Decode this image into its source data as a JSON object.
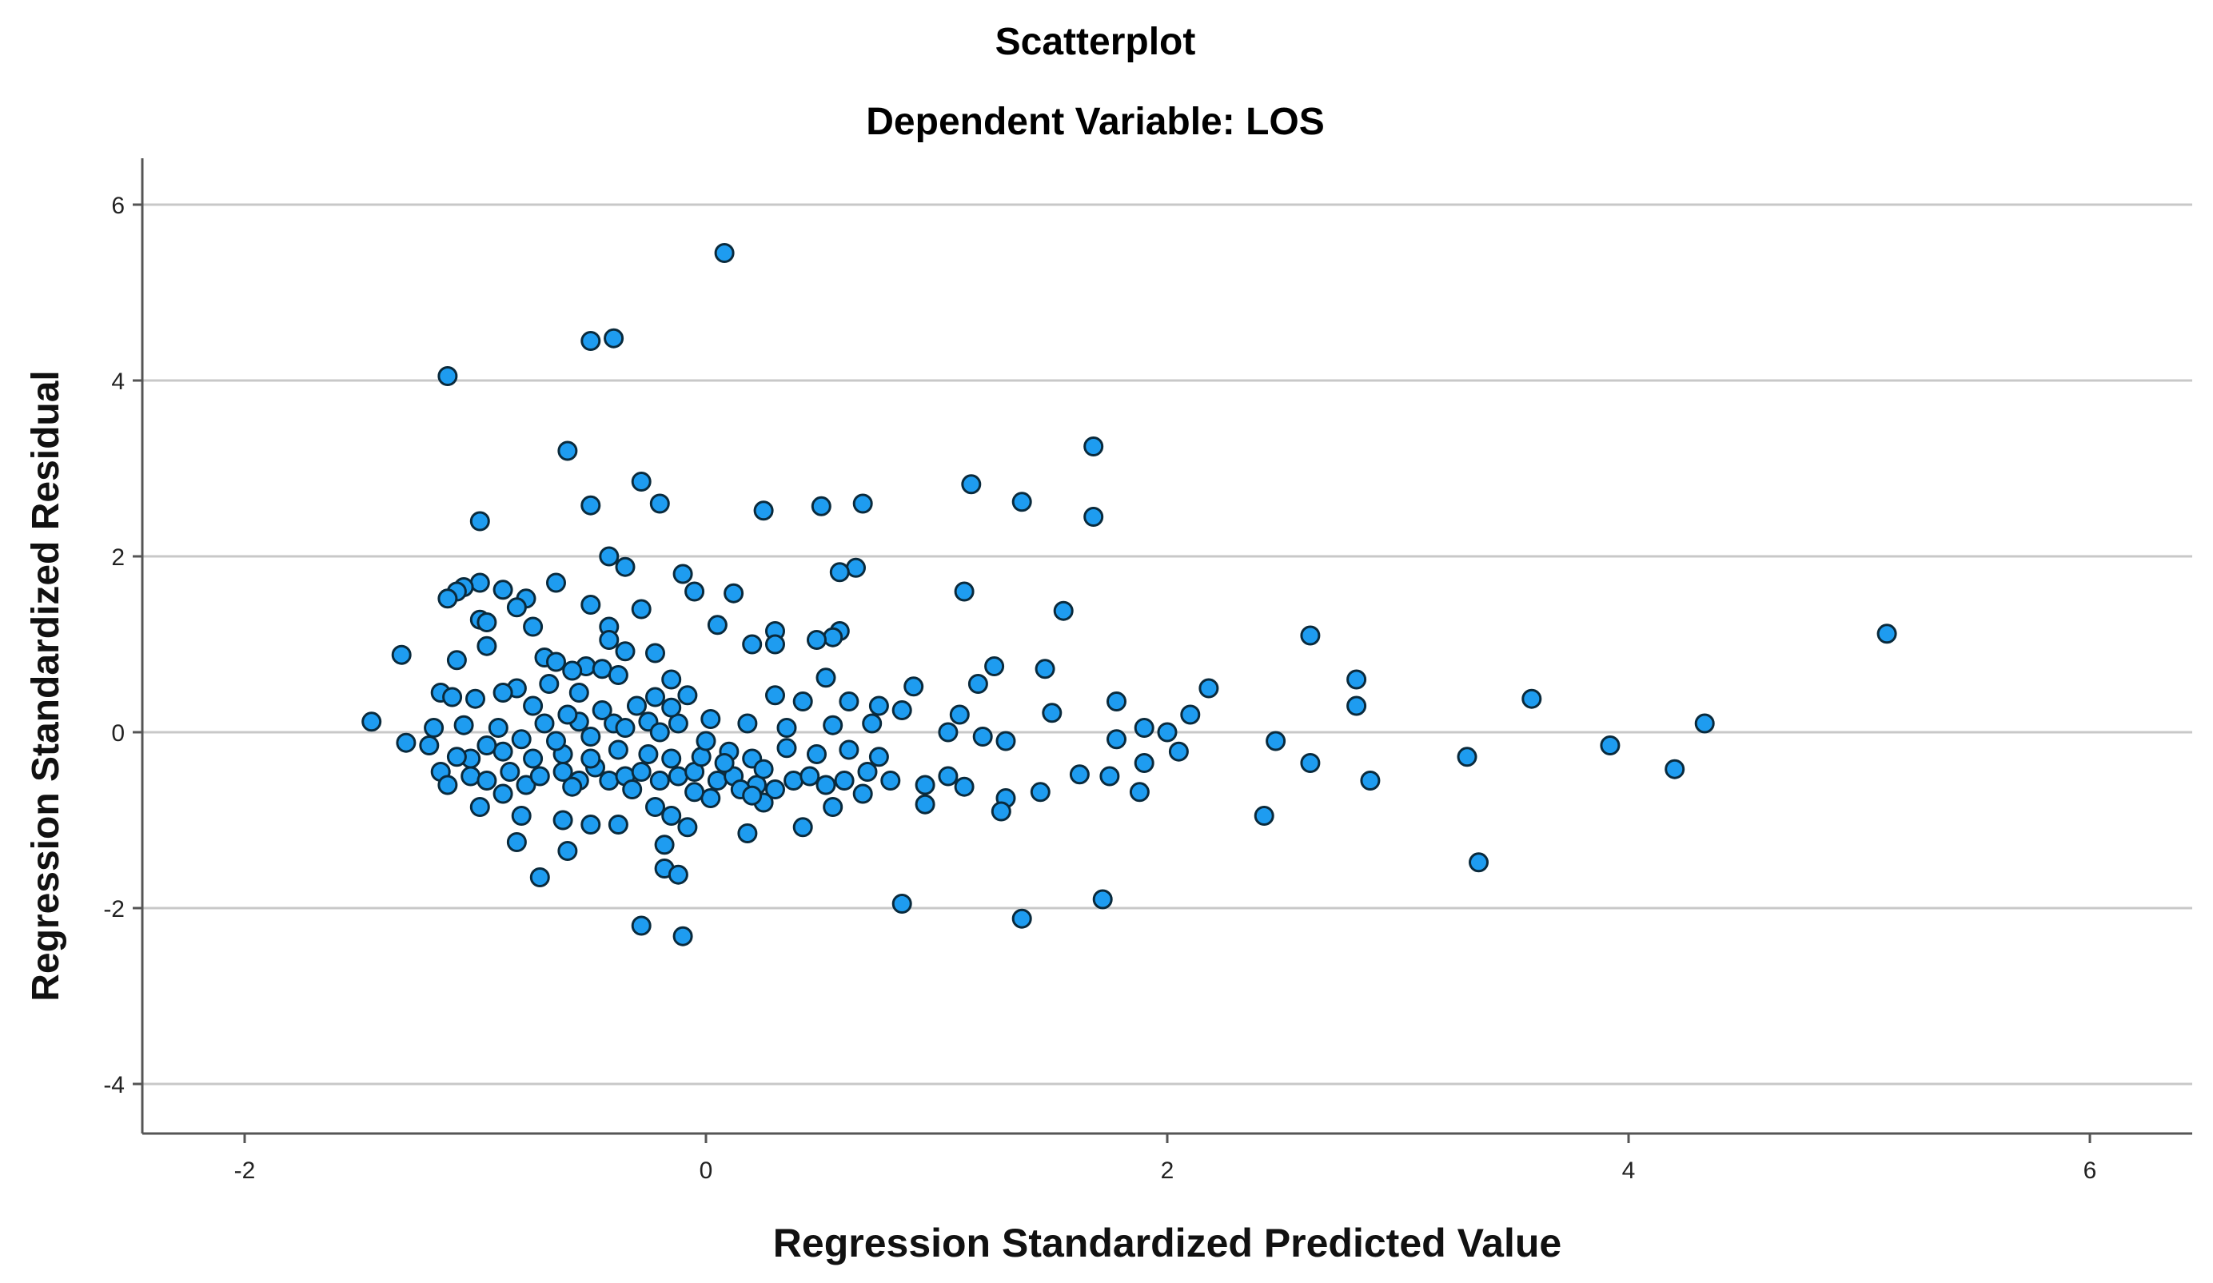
{
  "chart_data": {
    "type": "scatter",
    "title": "Scatterplot",
    "subtitle": "Dependent Variable: LOS",
    "xlabel": "Regression Standardized Predicted Value",
    "ylabel": "Regression Standardized Residual",
    "xlim": [
      -2.4,
      6.4
    ],
    "ylim": [
      -4.5,
      6.5
    ],
    "xticks": [
      -2,
      0,
      2,
      4,
      6
    ],
    "yticks": [
      -4,
      -2,
      0,
      2,
      4,
      6
    ],
    "xtick_labels": [
      "-2",
      "0",
      "2",
      "4",
      "6"
    ],
    "ytick_labels": [
      "-4",
      "-2",
      "0",
      "2",
      "4",
      "6"
    ],
    "grid": "horizontal",
    "marker_fill": "#1e9cf0",
    "marker_edge": "#0a2a3c",
    "grid_color": "#c8c8c8",
    "axis_color": "#555555",
    "points": [
      [
        0.08,
        5.45
      ],
      [
        -0.5,
        4.45
      ],
      [
        -0.4,
        4.48
      ],
      [
        -1.12,
        4.05
      ],
      [
        -0.6,
        3.2
      ],
      [
        1.68,
        3.25
      ],
      [
        -0.28,
        2.85
      ],
      [
        1.15,
        2.82
      ],
      [
        1.37,
        2.62
      ],
      [
        0.68,
        2.6
      ],
      [
        -0.2,
        2.6
      ],
      [
        -0.5,
        2.58
      ],
      [
        0.5,
        2.57
      ],
      [
        0.25,
        2.52
      ],
      [
        1.68,
        2.45
      ],
      [
        -0.98,
        2.4
      ],
      [
        -0.42,
        2.0
      ],
      [
        -0.35,
        1.88
      ],
      [
        0.65,
        1.87
      ],
      [
        0.58,
        1.82
      ],
      [
        -0.1,
        1.8
      ],
      [
        -0.98,
        1.7
      ],
      [
        -0.65,
        1.7
      ],
      [
        -1.05,
        1.65
      ],
      [
        -1.08,
        1.6
      ],
      [
        -0.88,
        1.62
      ],
      [
        -0.78,
        1.52
      ],
      [
        -1.12,
        1.52
      ],
      [
        -0.05,
        1.6
      ],
      [
        0.12,
        1.58
      ],
      [
        1.12,
        1.6
      ],
      [
        1.55,
        1.38
      ],
      [
        -0.5,
        1.45
      ],
      [
        -0.82,
        1.42
      ],
      [
        -0.28,
        1.4
      ],
      [
        -0.98,
        1.28
      ],
      [
        -0.95,
        1.25
      ],
      [
        -0.75,
        1.2
      ],
      [
        -0.42,
        1.2
      ],
      [
        0.05,
        1.22
      ],
      [
        0.3,
        1.15
      ],
      [
        0.58,
        1.15
      ],
      [
        0.55,
        1.08
      ],
      [
        0.48,
        1.05
      ],
      [
        0.3,
        1.0
      ],
      [
        0.2,
        1.0
      ],
      [
        2.62,
        1.1
      ],
      [
        5.12,
        1.12
      ],
      [
        -0.42,
        1.05
      ],
      [
        -0.95,
        0.98
      ],
      [
        -0.35,
        0.92
      ],
      [
        -0.22,
        0.9
      ],
      [
        -1.32,
        0.88
      ],
      [
        -1.08,
        0.82
      ],
      [
        -0.7,
        0.85
      ],
      [
        -0.65,
        0.8
      ],
      [
        -0.52,
        0.75
      ],
      [
        -0.45,
        0.72
      ],
      [
        -0.58,
        0.7
      ],
      [
        -0.38,
        0.65
      ],
      [
        -0.15,
        0.6
      ],
      [
        0.52,
        0.62
      ],
      [
        1.25,
        0.75
      ],
      [
        1.47,
        0.72
      ],
      [
        1.18,
        0.55
      ],
      [
        0.9,
        0.52
      ],
      [
        2.18,
        0.5
      ],
      [
        2.82,
        0.6
      ],
      [
        -0.68,
        0.55
      ],
      [
        -0.82,
        0.5
      ],
      [
        -0.88,
        0.45
      ],
      [
        -1.15,
        0.45
      ],
      [
        -1.1,
        0.4
      ],
      [
        -1.0,
        0.38
      ],
      [
        -0.55,
        0.45
      ],
      [
        -0.22,
        0.4
      ],
      [
        -0.08,
        0.42
      ],
      [
        0.3,
        0.42
      ],
      [
        0.42,
        0.35
      ],
      [
        0.62,
        0.35
      ],
      [
        0.75,
        0.3
      ],
      [
        0.85,
        0.25
      ],
      [
        1.1,
        0.2
      ],
      [
        1.5,
        0.22
      ],
      [
        1.78,
        0.35
      ],
      [
        2.1,
        0.2
      ],
      [
        2.82,
        0.3
      ],
      [
        3.58,
        0.38
      ],
      [
        -1.45,
        0.12
      ],
      [
        -1.3,
        -0.12
      ],
      [
        -1.2,
        -0.15
      ],
      [
        -1.18,
        0.05
      ],
      [
        -1.05,
        0.08
      ],
      [
        -0.9,
        0.05
      ],
      [
        -0.7,
        0.1
      ],
      [
        -0.55,
        0.12
      ],
      [
        -0.4,
        0.1
      ],
      [
        -0.25,
        0.12
      ],
      [
        -0.12,
        0.1
      ],
      [
        0.02,
        0.15
      ],
      [
        0.18,
        0.1
      ],
      [
        0.35,
        0.05
      ],
      [
        0.55,
        0.08
      ],
      [
        0.72,
        0.1
      ],
      [
        1.05,
        0.0
      ],
      [
        1.2,
        -0.05
      ],
      [
        1.3,
        -0.1
      ],
      [
        1.78,
        -0.08
      ],
      [
        1.9,
        0.05
      ],
      [
        2.0,
        0.0
      ],
      [
        2.47,
        -0.1
      ],
      [
        4.33,
        0.1
      ],
      [
        3.92,
        -0.15
      ],
      [
        3.3,
        -0.28
      ],
      [
        2.62,
        -0.35
      ],
      [
        2.88,
        -0.55
      ],
      [
        4.2,
        -0.42
      ],
      [
        2.42,
        -0.95
      ],
      [
        -1.15,
        -0.45
      ],
      [
        -1.12,
        -0.6
      ],
      [
        -1.02,
        -0.5
      ],
      [
        -0.95,
        -0.55
      ],
      [
        -0.85,
        -0.45
      ],
      [
        -0.78,
        -0.6
      ],
      [
        -0.72,
        -0.5
      ],
      [
        -0.62,
        -0.45
      ],
      [
        -0.55,
        -0.55
      ],
      [
        -0.48,
        -0.4
      ],
      [
        -0.42,
        -0.55
      ],
      [
        -0.35,
        -0.5
      ],
      [
        -0.28,
        -0.45
      ],
      [
        -0.2,
        -0.55
      ],
      [
        -0.12,
        -0.5
      ],
      [
        -0.05,
        -0.45
      ],
      [
        0.05,
        -0.55
      ],
      [
        0.12,
        -0.5
      ],
      [
        0.22,
        -0.6
      ],
      [
        0.3,
        -0.65
      ],
      [
        0.38,
        -0.55
      ],
      [
        0.45,
        -0.5
      ],
      [
        0.52,
        -0.6
      ],
      [
        0.6,
        -0.55
      ],
      [
        0.7,
        -0.45
      ],
      [
        0.8,
        -0.55
      ],
      [
        0.95,
        -0.6
      ],
      [
        1.05,
        -0.5
      ],
      [
        1.12,
        -0.62
      ],
      [
        1.3,
        -0.75
      ],
      [
        1.45,
        -0.68
      ],
      [
        1.62,
        -0.48
      ],
      [
        1.75,
        -0.5
      ],
      [
        1.9,
        -0.35
      ],
      [
        1.88,
        -0.68
      ],
      [
        2.05,
        -0.22
      ],
      [
        -1.02,
        -0.3
      ],
      [
        -0.88,
        -0.22
      ],
      [
        -0.75,
        -0.3
      ],
      [
        -0.62,
        -0.25
      ],
      [
        -0.5,
        -0.3
      ],
      [
        -0.38,
        -0.2
      ],
      [
        -0.25,
        -0.25
      ],
      [
        -0.15,
        -0.3
      ],
      [
        -0.02,
        -0.28
      ],
      [
        0.1,
        -0.22
      ],
      [
        0.2,
        -0.3
      ],
      [
        0.35,
        -0.18
      ],
      [
        0.48,
        -0.25
      ],
      [
        0.62,
        -0.2
      ],
      [
        0.75,
        -0.28
      ],
      [
        -0.98,
        -0.85
      ],
      [
        -0.88,
        -0.7
      ],
      [
        -0.8,
        -0.95
      ],
      [
        -0.62,
        -1.0
      ],
      [
        -0.5,
        -1.05
      ],
      [
        -0.38,
        -1.05
      ],
      [
        -0.22,
        -0.85
      ],
      [
        -0.15,
        -0.95
      ],
      [
        -0.08,
        -1.08
      ],
      [
        0.02,
        -0.75
      ],
      [
        0.15,
        -0.65
      ],
      [
        0.25,
        -0.8
      ],
      [
        0.42,
        -1.08
      ],
      [
        0.55,
        -0.85
      ],
      [
        0.68,
        -0.7
      ],
      [
        0.95,
        -0.82
      ],
      [
        1.28,
        -0.9
      ],
      [
        0.18,
        -1.15
      ],
      [
        -0.82,
        -1.25
      ],
      [
        -0.6,
        -1.35
      ],
      [
        -0.18,
        -1.28
      ],
      [
        -0.18,
        -1.55
      ],
      [
        -0.12,
        -1.62
      ],
      [
        -0.72,
        -1.65
      ],
      [
        0.85,
        -1.95
      ],
      [
        1.72,
        -1.9
      ],
      [
        1.37,
        -2.12
      ],
      [
        -0.28,
        -2.2
      ],
      [
        -0.1,
        -2.32
      ],
      [
        3.35,
        -1.48
      ],
      [
        -0.3,
        0.3
      ],
      [
        -0.45,
        0.25
      ],
      [
        -0.6,
        0.2
      ],
      [
        -0.75,
        0.3
      ],
      [
        -0.15,
        0.28
      ],
      [
        0.0,
        -0.1
      ],
      [
        -0.2,
        0.0
      ],
      [
        -0.35,
        0.05
      ],
      [
        -0.5,
        -0.05
      ],
      [
        -0.65,
        -0.1
      ],
      [
        -0.8,
        -0.08
      ],
      [
        -0.95,
        -0.15
      ],
      [
        -1.08,
        -0.28
      ],
      [
        0.08,
        -0.35
      ],
      [
        0.25,
        -0.42
      ],
      [
        -0.58,
        -0.62
      ],
      [
        -0.32,
        -0.65
      ],
      [
        -0.05,
        -0.68
      ],
      [
        0.2,
        -0.72
      ]
    ]
  }
}
